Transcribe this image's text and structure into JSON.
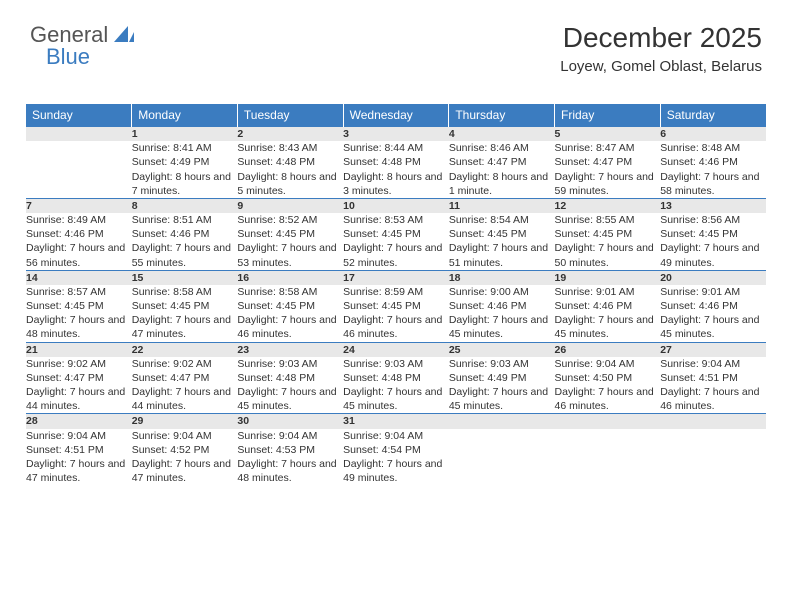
{
  "logo": {
    "text1": "General",
    "text2": "Blue"
  },
  "header": {
    "month_title": "December 2025",
    "location": "Loyew, Gomel Oblast, Belarus"
  },
  "colors": {
    "accent": "#3b7cc0",
    "header_bg": "#3b7cc0",
    "header_text": "#ffffff",
    "daynum_bg": "#e8e8e8",
    "daynum_border": "#3b7cc0",
    "page_bg": "#ffffff",
    "text": "#333333",
    "logo_gray": "#555555"
  },
  "daynames": [
    "Sunday",
    "Monday",
    "Tuesday",
    "Wednesday",
    "Thursday",
    "Friday",
    "Saturday"
  ],
  "weeks": [
    {
      "nums": [
        "",
        "1",
        "2",
        "3",
        "4",
        "5",
        "6"
      ],
      "details": [
        "",
        "Sunrise: 8:41 AM\nSunset: 4:49 PM\nDaylight: 8 hours and 7 minutes.",
        "Sunrise: 8:43 AM\nSunset: 4:48 PM\nDaylight: 8 hours and 5 minutes.",
        "Sunrise: 8:44 AM\nSunset: 4:48 PM\nDaylight: 8 hours and 3 minutes.",
        "Sunrise: 8:46 AM\nSunset: 4:47 PM\nDaylight: 8 hours and 1 minute.",
        "Sunrise: 8:47 AM\nSunset: 4:47 PM\nDaylight: 7 hours and 59 minutes.",
        "Sunrise: 8:48 AM\nSunset: 4:46 PM\nDaylight: 7 hours and 58 minutes."
      ]
    },
    {
      "nums": [
        "7",
        "8",
        "9",
        "10",
        "11",
        "12",
        "13"
      ],
      "details": [
        "Sunrise: 8:49 AM\nSunset: 4:46 PM\nDaylight: 7 hours and 56 minutes.",
        "Sunrise: 8:51 AM\nSunset: 4:46 PM\nDaylight: 7 hours and 55 minutes.",
        "Sunrise: 8:52 AM\nSunset: 4:45 PM\nDaylight: 7 hours and 53 minutes.",
        "Sunrise: 8:53 AM\nSunset: 4:45 PM\nDaylight: 7 hours and 52 minutes.",
        "Sunrise: 8:54 AM\nSunset: 4:45 PM\nDaylight: 7 hours and 51 minutes.",
        "Sunrise: 8:55 AM\nSunset: 4:45 PM\nDaylight: 7 hours and 50 minutes.",
        "Sunrise: 8:56 AM\nSunset: 4:45 PM\nDaylight: 7 hours and 49 minutes."
      ]
    },
    {
      "nums": [
        "14",
        "15",
        "16",
        "17",
        "18",
        "19",
        "20"
      ],
      "details": [
        "Sunrise: 8:57 AM\nSunset: 4:45 PM\nDaylight: 7 hours and 48 minutes.",
        "Sunrise: 8:58 AM\nSunset: 4:45 PM\nDaylight: 7 hours and 47 minutes.",
        "Sunrise: 8:58 AM\nSunset: 4:45 PM\nDaylight: 7 hours and 46 minutes.",
        "Sunrise: 8:59 AM\nSunset: 4:45 PM\nDaylight: 7 hours and 46 minutes.",
        "Sunrise: 9:00 AM\nSunset: 4:46 PM\nDaylight: 7 hours and 45 minutes.",
        "Sunrise: 9:01 AM\nSunset: 4:46 PM\nDaylight: 7 hours and 45 minutes.",
        "Sunrise: 9:01 AM\nSunset: 4:46 PM\nDaylight: 7 hours and 45 minutes."
      ]
    },
    {
      "nums": [
        "21",
        "22",
        "23",
        "24",
        "25",
        "26",
        "27"
      ],
      "details": [
        "Sunrise: 9:02 AM\nSunset: 4:47 PM\nDaylight: 7 hours and 44 minutes.",
        "Sunrise: 9:02 AM\nSunset: 4:47 PM\nDaylight: 7 hours and 44 minutes.",
        "Sunrise: 9:03 AM\nSunset: 4:48 PM\nDaylight: 7 hours and 45 minutes.",
        "Sunrise: 9:03 AM\nSunset: 4:48 PM\nDaylight: 7 hours and 45 minutes.",
        "Sunrise: 9:03 AM\nSunset: 4:49 PM\nDaylight: 7 hours and 45 minutes.",
        "Sunrise: 9:04 AM\nSunset: 4:50 PM\nDaylight: 7 hours and 46 minutes.",
        "Sunrise: 9:04 AM\nSunset: 4:51 PM\nDaylight: 7 hours and 46 minutes."
      ]
    },
    {
      "nums": [
        "28",
        "29",
        "30",
        "31",
        "",
        "",
        ""
      ],
      "details": [
        "Sunrise: 9:04 AM\nSunset: 4:51 PM\nDaylight: 7 hours and 47 minutes.",
        "Sunrise: 9:04 AM\nSunset: 4:52 PM\nDaylight: 7 hours and 47 minutes.",
        "Sunrise: 9:04 AM\nSunset: 4:53 PM\nDaylight: 7 hours and 48 minutes.",
        "Sunrise: 9:04 AM\nSunset: 4:54 PM\nDaylight: 7 hours and 49 minutes.",
        "",
        "",
        ""
      ]
    }
  ]
}
